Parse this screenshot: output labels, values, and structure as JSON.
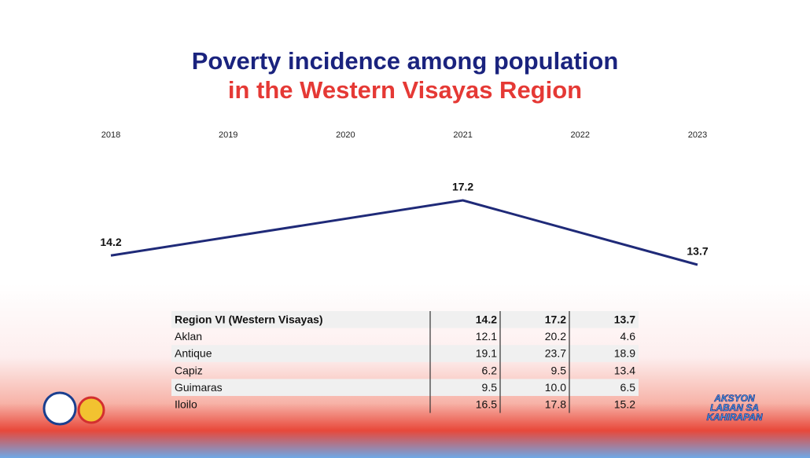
{
  "chart_data": {
    "type": "line",
    "title": "Poverty incidence among population",
    "subtitle": "in the Western Visayas Region",
    "x": [
      2018,
      2021,
      2023
    ],
    "xlim": [
      2018,
      2023
    ],
    "xticks": [
      2018,
      2019,
      2020,
      2021,
      2022,
      2023
    ],
    "values": [
      14.2,
      17.2,
      13.7
    ],
    "color": "#1f2a78"
  },
  "table": {
    "rows": [
      [
        "Region VI (Western Visayas)",
        "14.2",
        "17.2",
        "13.7"
      ],
      [
        "Aklan",
        "12.1",
        "20.2",
        "4.6"
      ],
      [
        "Antique",
        "19.1",
        "23.7",
        "18.9"
      ],
      [
        "Capiz",
        "6.2",
        "9.5",
        "13.4"
      ],
      [
        "Guimaras",
        "9.5",
        "10.0",
        "6.5"
      ],
      [
        "Iloilo",
        "16.5",
        "17.8",
        "15.2"
      ]
    ]
  },
  "branding": [
    "AKSYON",
    "LABAN SA",
    "KAHIRAPAN"
  ]
}
